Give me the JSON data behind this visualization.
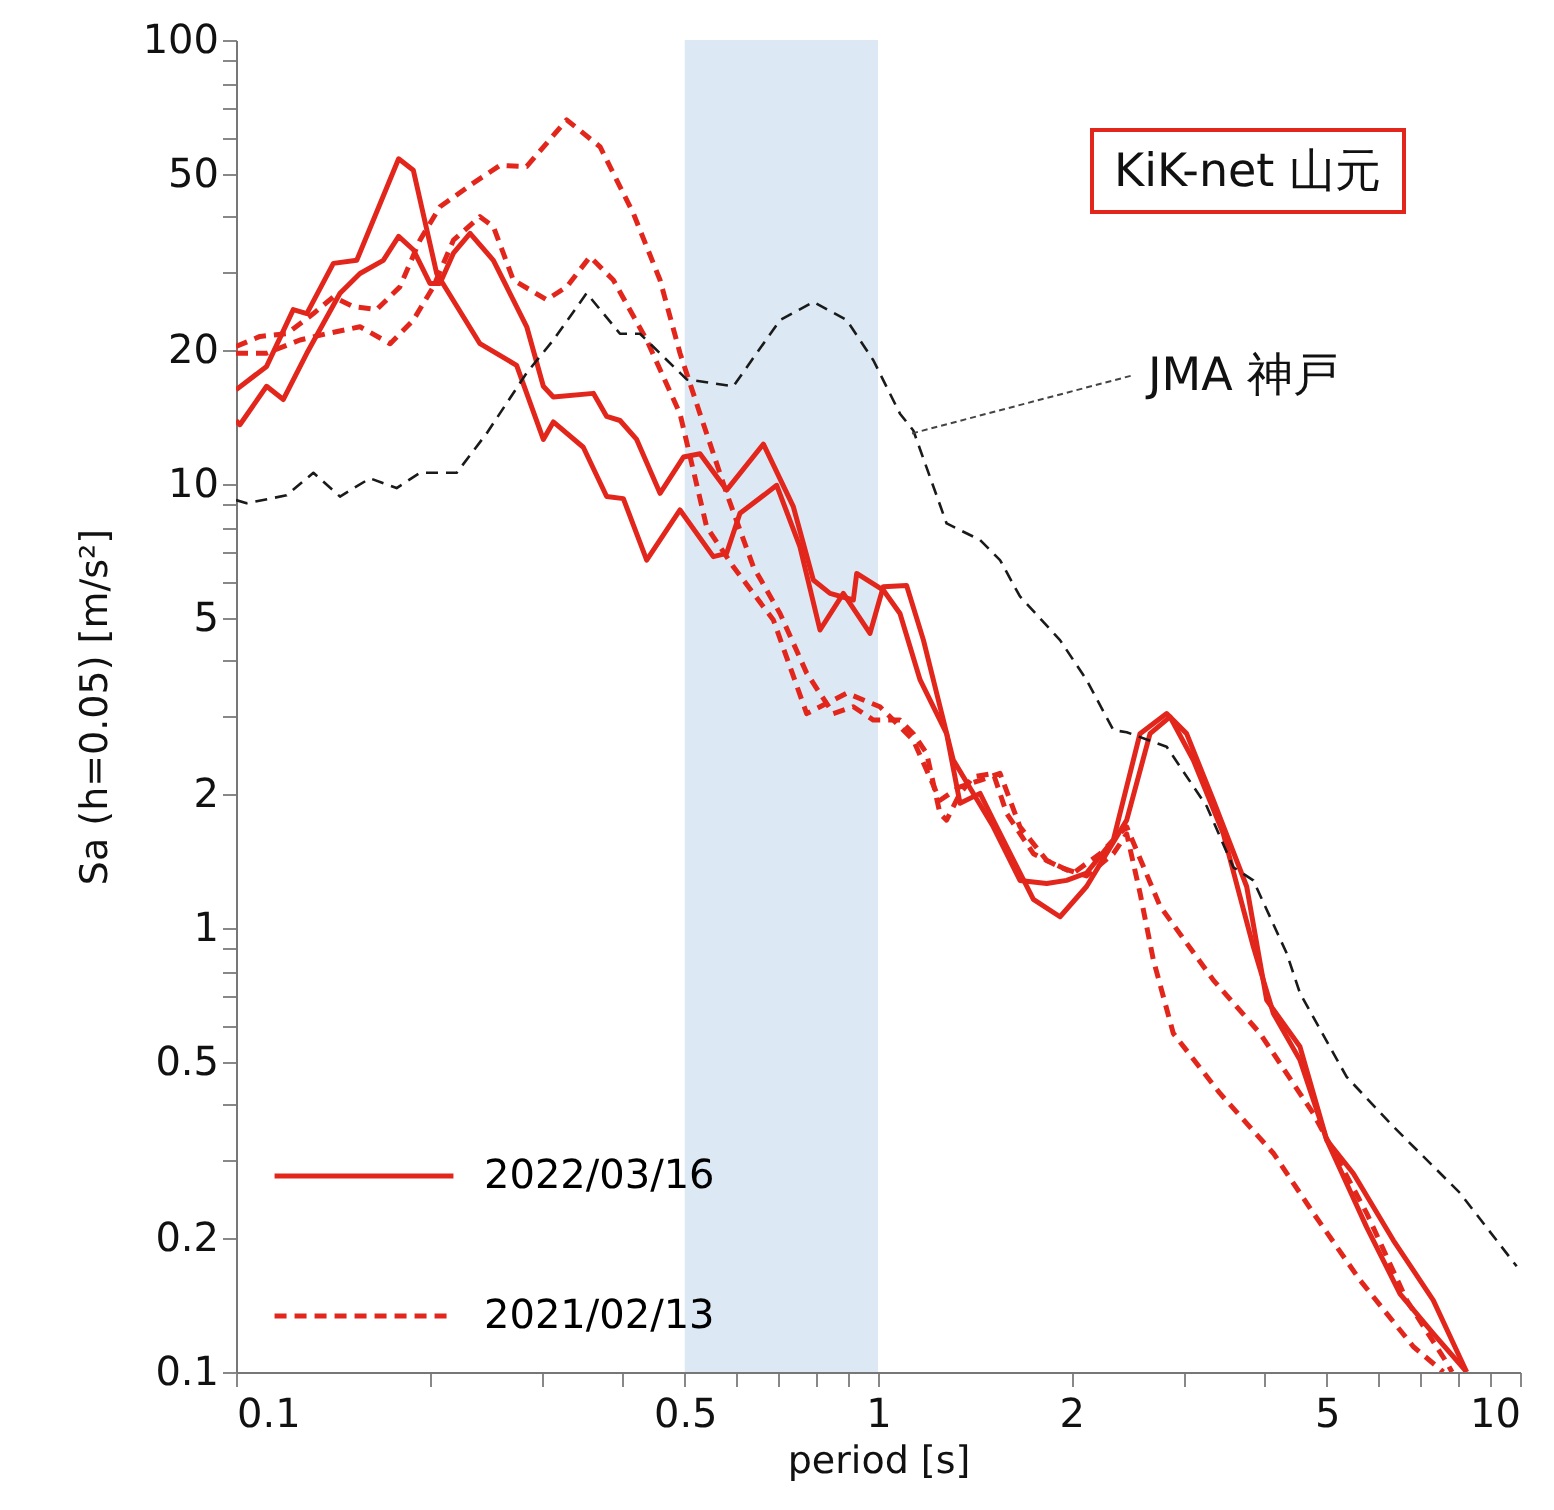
{
  "chart_data": {
    "type": "line",
    "xlabel": "period [s]",
    "ylabel": "Sa (h=0.05) [m/s²]",
    "log": "xy",
    "xlim": [
      0.1,
      10
    ],
    "ylim": [
      0.1,
      100
    ],
    "xticks": [
      0.1,
      {
        "value": 0.2,
        "label": null
      },
      {
        "value": 0.3,
        "label": null
      },
      {
        "value": 0.4,
        "label": null
      },
      0.5,
      {
        "value": 0.6,
        "label": null
      },
      {
        "value": 0.7,
        "label": null
      },
      {
        "value": 0.8,
        "label": null
      },
      {
        "value": 0.9,
        "label": null
      },
      1,
      2,
      {
        "value": 3,
        "label": null
      },
      {
        "value": 4,
        "label": null
      },
      5,
      {
        "value": 6,
        "label": null
      },
      {
        "value": 7,
        "label": null
      },
      {
        "value": 8,
        "label": null
      },
      {
        "value": 9,
        "label": null
      },
      10
    ],
    "yticks": [
      0.1,
      0.2,
      {
        "value": 0.3,
        "label": null
      },
      {
        "value": 0.4,
        "label": null
      },
      0.5,
      {
        "value": 0.6,
        "label": null
      },
      {
        "value": 0.7,
        "label": null
      },
      {
        "value": 0.8,
        "label": null
      },
      {
        "value": 0.9,
        "label": null
      },
      1,
      2,
      {
        "value": 3,
        "label": null
      },
      {
        "value": 4,
        "label": null
      },
      5,
      {
        "value": 6,
        "label": null
      },
      {
        "value": 7,
        "label": null
      },
      {
        "value": 8,
        "label": null
      },
      {
        "value": 9,
        "label": null
      },
      10,
      20,
      {
        "value": 30,
        "label": null
      },
      {
        "value": 40,
        "label": null
      },
      50,
      {
        "value": 60,
        "label": null
      },
      {
        "value": 70,
        "label": null
      },
      {
        "value": 80,
        "label": null
      },
      {
        "value": 90,
        "label": null
      },
      100
    ],
    "legend": "bottom left",
    "bands": [
      {
        "axis": "x",
        "from": 0.5,
        "to": 1,
        "color": "#dce8f4"
      }
    ],
    "annotations": [
      "KiK-net 山元",
      {
        "text": "JMA 神戸",
        "x": 1.13,
        "y": 13
      }
    ],
    "series": [
      {
        "name": "2022/03/16",
        "color": "#e2261c",
        "line_style": "solid",
        "x": [
          0.1,
          0.1116,
          0.1228,
          0.1289,
          0.1418,
          0.1542,
          0.1792,
          0.1889,
          0.2054,
          0.2399,
          0.2736,
          0.3011,
          0.3121,
          0.3475,
          0.3779,
          0.4012,
          0.4362,
          0.4916,
          0.554,
          0.581,
          0.6095,
          0.6953,
          0.7557,
          0.8122,
          0.8831,
          0.9717,
          1.019,
          1.108,
          1.177,
          1.31,
          1.512,
          1.664,
          1.831,
          1.967,
          2.113,
          2.326,
          2.559,
          2.816,
          3.025,
          3.329,
          3.752,
          4.031,
          4.543,
          5.0,
          5.501,
          6.349,
          7.328,
          8.259
        ],
        "values": [
          16.3,
          18.4,
          24.7,
          24.2,
          31.4,
          31.9,
          54.0,
          50.9,
          29.8,
          20.7,
          18.5,
          12.6,
          13.8,
          12.1,
          9.37,
          9.27,
          6.74,
          8.74,
          6.86,
          6.98,
          8.59,
          9.93,
          7.23,
          4.69,
          5.67,
          4.61,
          5.87,
          5.91,
          4.45,
          2.39,
          1.69,
          1.28,
          1.26,
          1.28,
          1.33,
          1.58,
          2.74,
          3.04,
          2.74,
          1.94,
          1.24,
          0.688,
          0.54,
          0.333,
          0.28,
          0.198,
          0.145,
          0.1
        ]
      },
      {
        "color": "#e2261c",
        "line_style": "solid",
        "x": [
          0.1,
          0.1014,
          0.1116,
          0.1185,
          0.1289,
          0.1452,
          0.156,
          0.1696,
          0.1792,
          0.1889,
          0.2005,
          0.2078,
          0.2181,
          0.2315,
          0.2517,
          0.2837,
          0.3011,
          0.3121,
          0.3603,
          0.3779,
          0.3964,
          0.4208,
          0.4576,
          0.4977,
          0.5281,
          0.581,
          0.663,
          0.7381,
          0.7929,
          0.8419,
          0.9154,
          0.9265,
          1.019,
          1.082,
          1.163,
          1.279,
          1.342,
          1.442,
          1.512,
          1.746,
          1.921,
          2.113,
          2.44,
          2.653,
          2.85,
          3.098,
          3.451,
          3.842,
          4.129,
          4.543,
          5.0,
          5.769,
          6.503,
          7.328,
          8.259
        ],
        "values": [
          13.9,
          13.6,
          16.6,
          15.5,
          19.7,
          26.9,
          29.8,
          31.9,
          36.1,
          33.7,
          28.3,
          28.3,
          33.1,
          36.7,
          31.9,
          22.6,
          16.6,
          15.7,
          16.0,
          14.2,
          13.9,
          12.6,
          9.53,
          11.5,
          11.7,
          9.69,
          12.3,
          8.89,
          6.08,
          5.67,
          5.48,
          6.29,
          5.77,
          5.11,
          3.62,
          2.74,
          1.91,
          2.01,
          1.75,
          1.16,
          1.06,
          1.24,
          1.75,
          2.74,
          2.99,
          2.39,
          1.63,
          0.908,
          0.642,
          0.504,
          0.333,
          0.212,
          0.15,
          0.122,
          0.1
        ]
      },
      {
        "name": "2021/02/13",
        "color": "#e2261c",
        "line_style": "dashed",
        "x": [
          0.1,
          0.109,
          0.1199,
          0.132,
          0.1418,
          0.1523,
          0.1656,
          0.18,
          0.1934,
          0.2078,
          0.2342,
          0.2577,
          0.2837,
          0.3274,
          0.369,
          0.4158,
          0.4576,
          0.4916,
          0.5281,
          0.581,
          0.6395,
          0.7037,
          0.7743,
          0.8518,
          0.9154,
          0.9834,
          1.082,
          1.135,
          1.191,
          1.249,
          1.279,
          1.342,
          1.408,
          1.512,
          1.587,
          1.746,
          1.921,
          2.113,
          2.326,
          2.44,
          2.559,
          2.685,
          2.884,
          3.41,
          4.129,
          4.765,
          5.633,
          6.823,
          7.597
        ],
        "values": [
          20.4,
          21.5,
          21.8,
          24.2,
          26.4,
          25.1,
          24.7,
          27.8,
          35.4,
          42.1,
          47.6,
          52.2,
          51.9,
          66.1,
          57.5,
          40.7,
          28.8,
          19.7,
          14.4,
          9.53,
          6.51,
          5.11,
          3.75,
          3.04,
          3.15,
          2.94,
          2.94,
          2.74,
          2.47,
          1.81,
          1.75,
          2.01,
          2.19,
          2.23,
          1.81,
          1.47,
          1.37,
          1.31,
          1.47,
          1.63,
          1.2,
          0.847,
          0.579,
          0.424,
          0.311,
          0.228,
          0.161,
          0.114,
          0.1
        ]
      },
      {
        "color": "#e2261c",
        "line_style": "dashed",
        "x": [
          0.1,
          0.1116,
          0.1258,
          0.1384,
          0.156,
          0.1738,
          0.1889,
          0.2029,
          0.2181,
          0.2399,
          0.2517,
          0.2704,
          0.3047,
          0.3274,
          0.356,
          0.387,
          0.4362,
          0.4916,
          0.5408,
          0.5953,
          0.6871,
          0.7743,
          0.8938,
          1.007,
          1.135,
          1.249,
          1.342,
          1.442,
          1.549,
          1.664,
          1.831,
          2.015,
          2.217,
          2.44,
          2.75,
          3.329,
          3.936,
          4.765,
          5.769,
          6.662,
          7.689,
          7.837
        ],
        "values": [
          19.7,
          19.7,
          21.1,
          21.8,
          22.6,
          20.7,
          23.4,
          27.8,
          35.4,
          40.0,
          38.0,
          28.8,
          26.0,
          27.8,
          32.5,
          28.8,
          21.1,
          14.4,
          8.01,
          6.51,
          4.94,
          3.04,
          3.38,
          3.15,
          2.65,
          1.94,
          2.08,
          2.15,
          2.23,
          1.69,
          1.42,
          1.33,
          1.47,
          1.69,
          1.12,
          0.763,
          0.579,
          0.382,
          0.228,
          0.145,
          0.105,
          0.1
        ]
      },
      {
        "color": "#1a1a1a",
        "line_style": "dashed",
        "x": [
          0.1,
          0.1039,
          0.1199,
          0.132,
          0.1452,
          0.1617,
          0.1779,
          0.1934,
          0.2207,
          0.2457,
          0.2837,
          0.3121,
          0.3517,
          0.3964,
          0.4259,
          0.5035,
          0.5953,
          0.7037,
          0.7929,
          0.8938,
          0.9834,
          1.082,
          1.135,
          1.279,
          1.442,
          1.549,
          1.664,
          1.921,
          2.113,
          2.326,
          2.44,
          2.816,
          3.251,
          3.577,
          3.842,
          4.331,
          4.543,
          5.37,
          6.349,
          8.064,
          9.881
        ],
        "values": [
          9.2,
          9.05,
          9.43,
          10.6,
          9.37,
          10.3,
          9.79,
          10.6,
          10.6,
          13.0,
          17.8,
          21.1,
          26.9,
          21.8,
          21.8,
          17.2,
          16.6,
          23.4,
          25.7,
          23.4,
          19.0,
          14.4,
          13.2,
          8.15,
          7.48,
          6.74,
          5.58,
          4.45,
          3.62,
          2.79,
          2.76,
          2.56,
          1.88,
          1.37,
          1.28,
          0.877,
          0.713,
          0.462,
          0.357,
          0.253,
          0.173
        ]
      }
    ]
  }
}
